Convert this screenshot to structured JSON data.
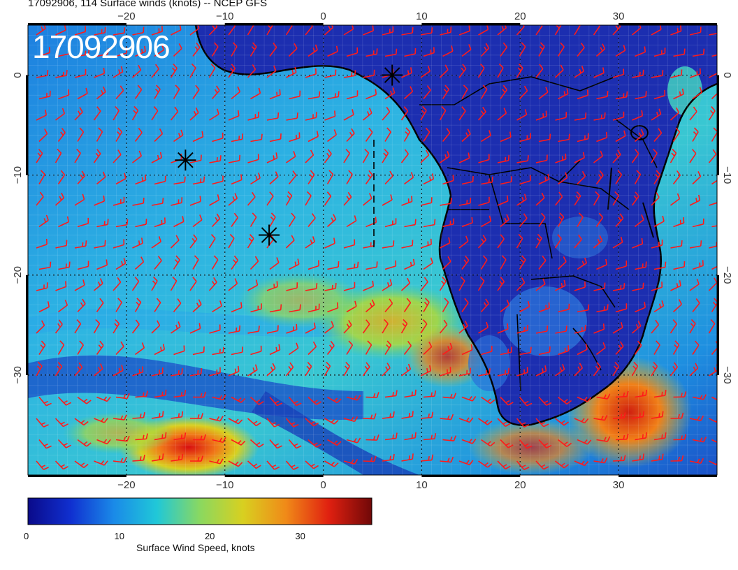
{
  "header": {
    "title": "17092906, 114 Surface winds (knots) -- NCEP GFS"
  },
  "map": {
    "date_stamp": "17092906",
    "lon_range": [
      -30,
      40
    ],
    "lat_range": [
      -40,
      5
    ],
    "x_ticks": [
      {
        "value": -20,
        "label": "−20"
      },
      {
        "value": -10,
        "label": "−10"
      },
      {
        "value": 0,
        "label": "0"
      },
      {
        "value": 10,
        "label": "10"
      },
      {
        "value": 20,
        "label": "20"
      },
      {
        "value": 30,
        "label": "30"
      }
    ],
    "y_ticks": [
      {
        "value": 0,
        "label": "0"
      },
      {
        "value": -10,
        "label": "−10"
      },
      {
        "value": -20,
        "label": "−20"
      },
      {
        "value": -30,
        "label": "−30"
      }
    ],
    "gridlines": true,
    "field_colors": {
      "land_deep": "#1a1f9e",
      "ocean": "#2aa8e0",
      "wind_barb": "#ff1a1a",
      "coast": "#000000"
    }
  },
  "markers": [
    {
      "icon": "star-marker-icon",
      "lon": 7,
      "lat": 0
    },
    {
      "icon": "star-marker-icon",
      "lon": -14,
      "lat": -8.5
    },
    {
      "icon": "star-marker-icon",
      "lon": -5.5,
      "lat": -16
    }
  ],
  "colorbar": {
    "title": "Surface Wind Speed, knots",
    "min": 0,
    "max": 38,
    "ticks": [
      {
        "value": 0,
        "label": "0"
      },
      {
        "value": 10,
        "label": "10"
      },
      {
        "value": 20,
        "label": "20"
      },
      {
        "value": 30,
        "label": "30"
      }
    ],
    "stops": [
      "#0a0a8a",
      "#1030d0",
      "#1a8ae8",
      "#20c8d8",
      "#8ad860",
      "#d8d020",
      "#f08a18",
      "#e02010",
      "#700808"
    ]
  }
}
